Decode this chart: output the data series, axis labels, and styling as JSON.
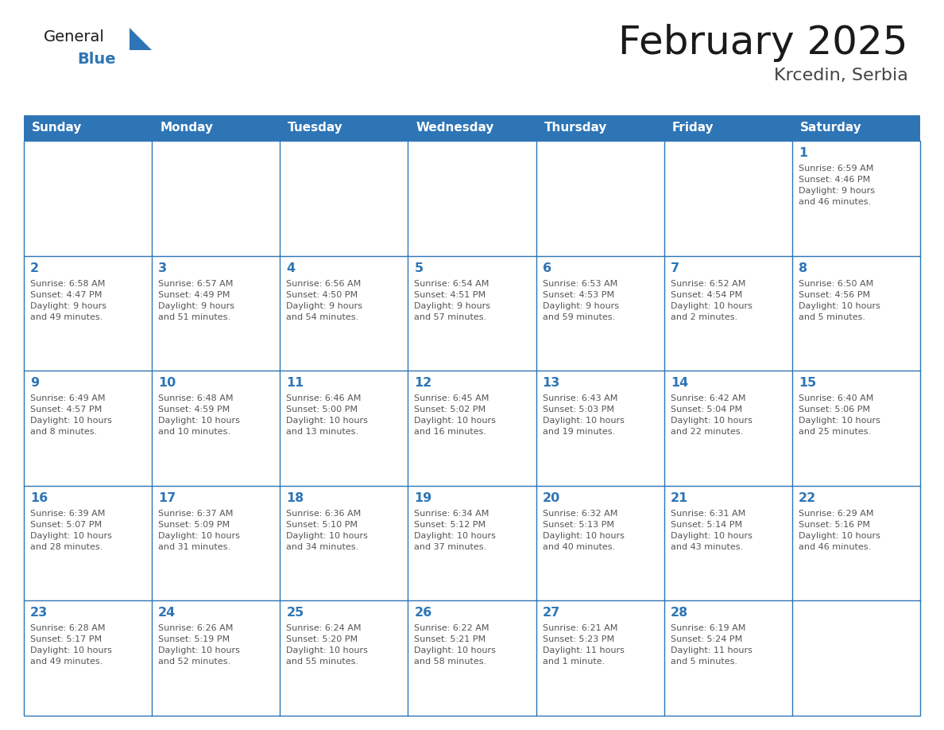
{
  "title": "February 2025",
  "subtitle": "Krcedin, Serbia",
  "header_bg": "#2E75B6",
  "header_text_color": "#FFFFFF",
  "cell_bg": "#FFFFFF",
  "cell_border_color": "#2E75B6",
  "day_number_color": "#2E75B6",
  "cell_text_color": "#555555",
  "days_of_week": [
    "Sunday",
    "Monday",
    "Tuesday",
    "Wednesday",
    "Thursday",
    "Friday",
    "Saturday"
  ],
  "title_color": "#1a1a1a",
  "subtitle_color": "#444444",
  "logo_general_color": "#1a1a1a",
  "logo_blue_color": "#2E75B6",
  "fig_width": 11.88,
  "fig_height": 9.18,
  "dpi": 100,
  "weeks": [
    [
      {
        "day": null,
        "info": null
      },
      {
        "day": null,
        "info": null
      },
      {
        "day": null,
        "info": null
      },
      {
        "day": null,
        "info": null
      },
      {
        "day": null,
        "info": null
      },
      {
        "day": null,
        "info": null
      },
      {
        "day": 1,
        "info": "Sunrise: 6:59 AM\nSunset: 4:46 PM\nDaylight: 9 hours\nand 46 minutes."
      }
    ],
    [
      {
        "day": 2,
        "info": "Sunrise: 6:58 AM\nSunset: 4:47 PM\nDaylight: 9 hours\nand 49 minutes."
      },
      {
        "day": 3,
        "info": "Sunrise: 6:57 AM\nSunset: 4:49 PM\nDaylight: 9 hours\nand 51 minutes."
      },
      {
        "day": 4,
        "info": "Sunrise: 6:56 AM\nSunset: 4:50 PM\nDaylight: 9 hours\nand 54 minutes."
      },
      {
        "day": 5,
        "info": "Sunrise: 6:54 AM\nSunset: 4:51 PM\nDaylight: 9 hours\nand 57 minutes."
      },
      {
        "day": 6,
        "info": "Sunrise: 6:53 AM\nSunset: 4:53 PM\nDaylight: 9 hours\nand 59 minutes."
      },
      {
        "day": 7,
        "info": "Sunrise: 6:52 AM\nSunset: 4:54 PM\nDaylight: 10 hours\nand 2 minutes."
      },
      {
        "day": 8,
        "info": "Sunrise: 6:50 AM\nSunset: 4:56 PM\nDaylight: 10 hours\nand 5 minutes."
      }
    ],
    [
      {
        "day": 9,
        "info": "Sunrise: 6:49 AM\nSunset: 4:57 PM\nDaylight: 10 hours\nand 8 minutes."
      },
      {
        "day": 10,
        "info": "Sunrise: 6:48 AM\nSunset: 4:59 PM\nDaylight: 10 hours\nand 10 minutes."
      },
      {
        "day": 11,
        "info": "Sunrise: 6:46 AM\nSunset: 5:00 PM\nDaylight: 10 hours\nand 13 minutes."
      },
      {
        "day": 12,
        "info": "Sunrise: 6:45 AM\nSunset: 5:02 PM\nDaylight: 10 hours\nand 16 minutes."
      },
      {
        "day": 13,
        "info": "Sunrise: 6:43 AM\nSunset: 5:03 PM\nDaylight: 10 hours\nand 19 minutes."
      },
      {
        "day": 14,
        "info": "Sunrise: 6:42 AM\nSunset: 5:04 PM\nDaylight: 10 hours\nand 22 minutes."
      },
      {
        "day": 15,
        "info": "Sunrise: 6:40 AM\nSunset: 5:06 PM\nDaylight: 10 hours\nand 25 minutes."
      }
    ],
    [
      {
        "day": 16,
        "info": "Sunrise: 6:39 AM\nSunset: 5:07 PM\nDaylight: 10 hours\nand 28 minutes."
      },
      {
        "day": 17,
        "info": "Sunrise: 6:37 AM\nSunset: 5:09 PM\nDaylight: 10 hours\nand 31 minutes."
      },
      {
        "day": 18,
        "info": "Sunrise: 6:36 AM\nSunset: 5:10 PM\nDaylight: 10 hours\nand 34 minutes."
      },
      {
        "day": 19,
        "info": "Sunrise: 6:34 AM\nSunset: 5:12 PM\nDaylight: 10 hours\nand 37 minutes."
      },
      {
        "day": 20,
        "info": "Sunrise: 6:32 AM\nSunset: 5:13 PM\nDaylight: 10 hours\nand 40 minutes."
      },
      {
        "day": 21,
        "info": "Sunrise: 6:31 AM\nSunset: 5:14 PM\nDaylight: 10 hours\nand 43 minutes."
      },
      {
        "day": 22,
        "info": "Sunrise: 6:29 AM\nSunset: 5:16 PM\nDaylight: 10 hours\nand 46 minutes."
      }
    ],
    [
      {
        "day": 23,
        "info": "Sunrise: 6:28 AM\nSunset: 5:17 PM\nDaylight: 10 hours\nand 49 minutes."
      },
      {
        "day": 24,
        "info": "Sunrise: 6:26 AM\nSunset: 5:19 PM\nDaylight: 10 hours\nand 52 minutes."
      },
      {
        "day": 25,
        "info": "Sunrise: 6:24 AM\nSunset: 5:20 PM\nDaylight: 10 hours\nand 55 minutes."
      },
      {
        "day": 26,
        "info": "Sunrise: 6:22 AM\nSunset: 5:21 PM\nDaylight: 10 hours\nand 58 minutes."
      },
      {
        "day": 27,
        "info": "Sunrise: 6:21 AM\nSunset: 5:23 PM\nDaylight: 11 hours\nand 1 minute."
      },
      {
        "day": 28,
        "info": "Sunrise: 6:19 AM\nSunset: 5:24 PM\nDaylight: 11 hours\nand 5 minutes."
      },
      {
        "day": null,
        "info": null
      }
    ]
  ]
}
